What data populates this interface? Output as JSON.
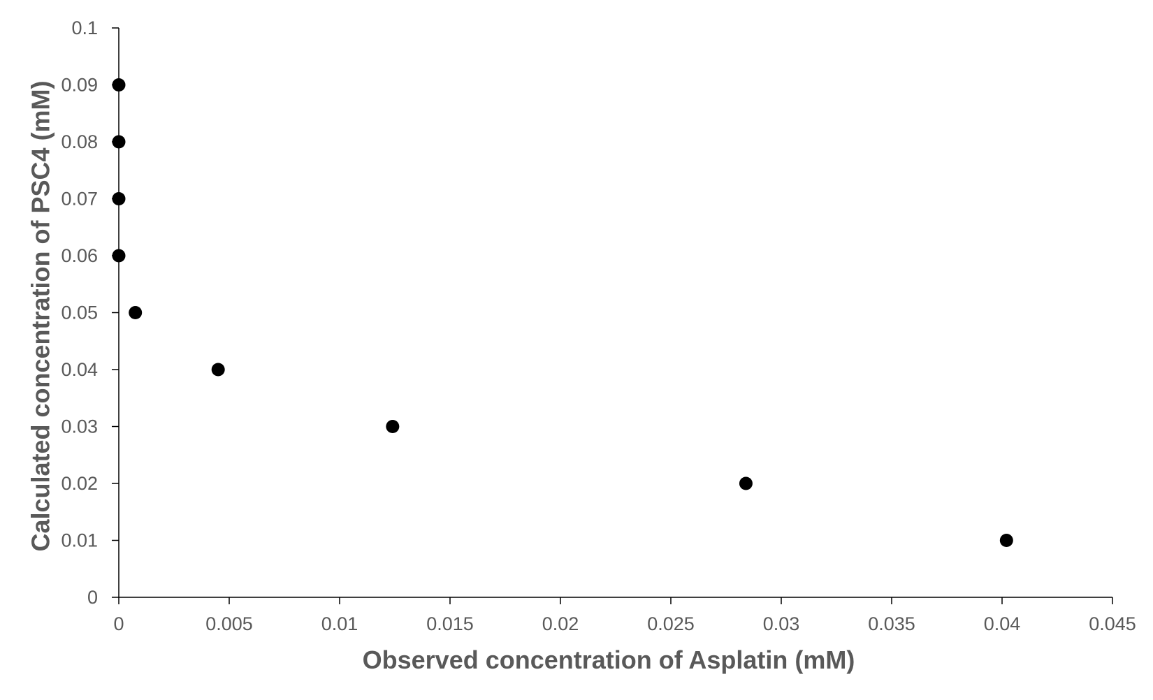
{
  "chart_data": {
    "type": "scatter",
    "title": "",
    "xlabel": "Observed concentration of Asplatin (mM)",
    "ylabel": "Calculated concentration of PSC4 (mM)",
    "xlim": [
      0,
      0.045
    ],
    "ylim": [
      0,
      0.1
    ],
    "x_ticks": [
      "0",
      "0.005",
      "0.01",
      "0.015",
      "0.02",
      "0.025",
      "0.03",
      "0.035",
      "0.04",
      "0.045"
    ],
    "x_tick_values": [
      0,
      0.005,
      0.01,
      0.015,
      0.02,
      0.025,
      0.03,
      0.035,
      0.04,
      0.045
    ],
    "y_ticks": [
      "0",
      "0.01",
      "0.02",
      "0.03",
      "0.04",
      "0.05",
      "0.06",
      "0.07",
      "0.08",
      "0.09",
      "0.1"
    ],
    "y_tick_values": [
      0,
      0.01,
      0.02,
      0.03,
      0.04,
      0.05,
      0.06,
      0.07,
      0.08,
      0.09,
      0.1
    ],
    "grid": false,
    "legend": "none",
    "marker_color": "#000000",
    "series": [
      {
        "x": [
          0,
          0,
          0,
          0,
          0.00075,
          0.0045,
          0.0124,
          0.0284,
          0.0402
        ],
        "y": [
          0.09,
          0.08,
          0.07,
          0.06,
          0.05,
          0.04,
          0.03,
          0.02,
          0.01
        ]
      }
    ]
  }
}
